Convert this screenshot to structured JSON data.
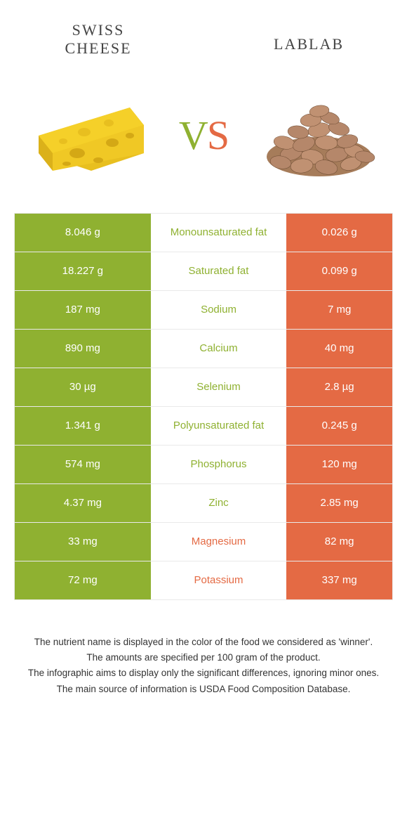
{
  "header": {
    "left_title": "Swiss cheese",
    "right_title": "Lablab",
    "vs_v": "V",
    "vs_s": "S"
  },
  "colors": {
    "green": "#8fb131",
    "orange": "#e46a44",
    "cheese_body": "#f5d029",
    "cheese_side": "#e8bf1f",
    "cheese_hole": "#d4a815",
    "bean_fill": "#b5876a",
    "bean_stroke": "#6b4a32"
  },
  "rows": [
    {
      "left": "8.046 g",
      "mid": "Monounsaturated fat",
      "right": "0.026 g",
      "winner": "green"
    },
    {
      "left": "18.227 g",
      "mid": "Saturated fat",
      "right": "0.099 g",
      "winner": "green"
    },
    {
      "left": "187 mg",
      "mid": "Sodium",
      "right": "7 mg",
      "winner": "green"
    },
    {
      "left": "890 mg",
      "mid": "Calcium",
      "right": "40 mg",
      "winner": "green"
    },
    {
      "left": "30 µg",
      "mid": "Selenium",
      "right": "2.8 µg",
      "winner": "green"
    },
    {
      "left": "1.341 g",
      "mid": "Polyunsaturated fat",
      "right": "0.245 g",
      "winner": "green"
    },
    {
      "left": "574 mg",
      "mid": "Phosphorus",
      "right": "120 mg",
      "winner": "green"
    },
    {
      "left": "4.37 mg",
      "mid": "Zinc",
      "right": "2.85 mg",
      "winner": "green"
    },
    {
      "left": "33 mg",
      "mid": "Magnesium",
      "right": "82 mg",
      "winner": "orange"
    },
    {
      "left": "72 mg",
      "mid": "Potassium",
      "right": "337 mg",
      "winner": "orange"
    }
  ],
  "footer": {
    "line1": "The nutrient name is displayed in the color of the food we considered as 'winner'.",
    "line2": "The amounts are specified per 100 gram of the product.",
    "line3": "The infographic aims to display only the significant differences, ignoring minor ones.",
    "line4": "The main source of information is USDA Food Composition Database."
  }
}
